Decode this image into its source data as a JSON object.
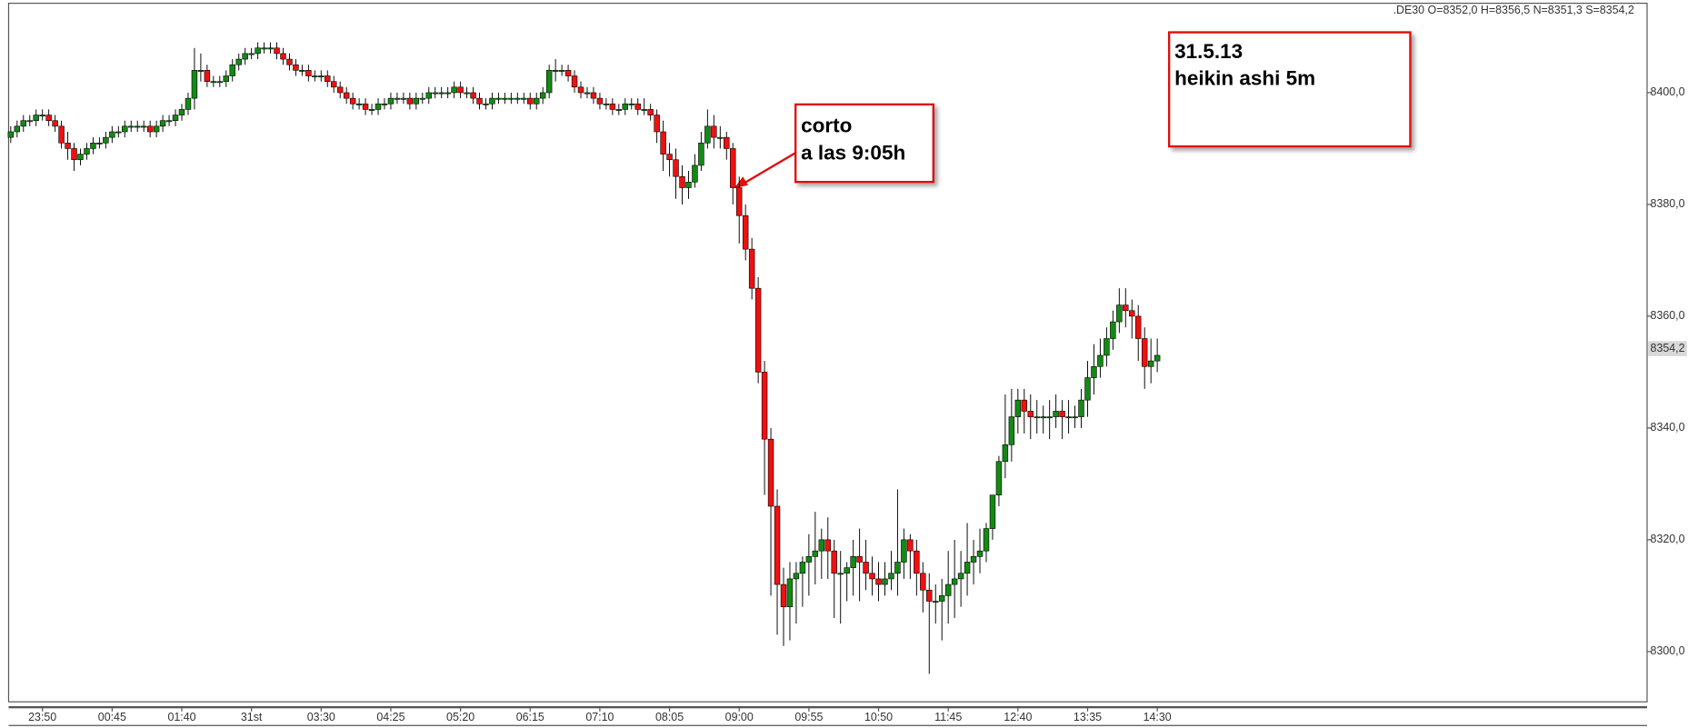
{
  "chart_data": {
    "type": "candlestick",
    "header": ".DE30 O=8352,0 H=8356,5 N=8351,3 S=8354,2",
    "annotations": [
      {
        "lines": [
          "corto",
          "a las 9:05h"
        ]
      },
      {
        "lines": [
          "31.5.13",
          "heikin ashi 5m"
        ]
      }
    ],
    "last_price": {
      "value": 8354.2,
      "label": "8354,2"
    },
    "up_color": "#138a13",
    "down_color": "#f01010",
    "ylim": [
      8291,
      8416
    ],
    "yticks": [
      {
        "value": 8300,
        "label": "8300,0"
      },
      {
        "value": 8320,
        "label": "8320,0"
      },
      {
        "value": 8340,
        "label": "8340,0"
      },
      {
        "value": 8360,
        "label": "8360,0"
      },
      {
        "value": 8380,
        "label": "8380,0"
      },
      {
        "value": 8400,
        "label": "8400,0"
      }
    ],
    "categories": [
      null,
      null,
      null,
      null,
      null,
      "23:50",
      null,
      null,
      null,
      null,
      null,
      null,
      null,
      null,
      null,
      null,
      "00:45",
      null,
      null,
      null,
      null,
      null,
      null,
      null,
      null,
      null,
      null,
      "01:40",
      null,
      null,
      null,
      null,
      null,
      null,
      null,
      null,
      null,
      null,
      "31st",
      null,
      null,
      null,
      null,
      null,
      null,
      null,
      null,
      null,
      null,
      "03:30",
      null,
      null,
      null,
      null,
      null,
      null,
      null,
      null,
      null,
      null,
      "04:25",
      null,
      null,
      null,
      null,
      null,
      null,
      null,
      null,
      null,
      null,
      "05:20",
      null,
      null,
      null,
      null,
      null,
      null,
      null,
      null,
      null,
      null,
      "06:15",
      null,
      null,
      null,
      null,
      null,
      null,
      null,
      null,
      null,
      null,
      "07:10",
      null,
      null,
      null,
      null,
      null,
      null,
      null,
      null,
      null,
      null,
      "08:05",
      null,
      null,
      null,
      null,
      null,
      null,
      null,
      null,
      null,
      null,
      "09:00",
      null,
      null,
      null,
      null,
      null,
      null,
      null,
      null,
      null,
      null,
      "09:55",
      null,
      null,
      null,
      null,
      null,
      null,
      null,
      null,
      null,
      null,
      "10:50",
      null,
      null,
      null,
      null,
      null,
      null,
      null,
      null,
      null,
      null,
      "11:45",
      null,
      null,
      null,
      null,
      null,
      null,
      null,
      null,
      null,
      null,
      "12:40",
      null,
      null,
      null,
      null,
      null,
      null,
      null,
      null,
      null,
      null,
      "13:35",
      null,
      null,
      null,
      null,
      null,
      null,
      null,
      null,
      null,
      null,
      "14:30"
    ],
    "open": [
      8392,
      8393,
      8394,
      8395,
      8395,
      8396,
      8396,
      8395,
      8394,
      8391,
      8390,
      8388,
      8389,
      8390,
      8391,
      8391,
      8392,
      8393,
      8393,
      8394,
      8394,
      8394,
      8394,
      8393,
      8394,
      8395,
      8395,
      8396,
      8397,
      8399,
      8404,
      8404,
      8402,
      8402,
      8402,
      8403,
      8405,
      8406,
      8407,
      8407,
      8408,
      8408,
      8408,
      8407,
      8406,
      8405,
      8404,
      8404,
      8403,
      8403,
      8403,
      8402,
      8401,
      8400,
      8399,
      8398,
      8398,
      8397,
      8397,
      8398,
      8398,
      8399,
      8399,
      8399,
      8398,
      8399,
      8399,
      8400,
      8400,
      8400,
      8400,
      8401,
      8400,
      8400,
      8399,
      8398,
      8398,
      8399,
      8399,
      8399,
      8399,
      8399,
      8399,
      8398,
      8399,
      8400,
      8404,
      8404,
      8404,
      8403,
      8401,
      8400,
      8400,
      8399,
      8398,
      8398,
      8397,
      8397,
      8398,
      8398,
      8397,
      8397,
      8396,
      8393,
      8389,
      8388,
      8385,
      8383,
      8384,
      8387,
      8391,
      8394,
      8392,
      8392,
      8390,
      8383,
      8378,
      8372,
      8365,
      8350,
      8338,
      8326,
      8312,
      8308,
      8313,
      8314,
      8316,
      8317,
      8318,
      8320,
      8318,
      8314,
      8314,
      8315,
      8317,
      8316,
      8314,
      8313,
      8312,
      8313,
      8314,
      8316,
      8320,
      8318,
      8314,
      8311,
      8309,
      8309,
      8310,
      8312,
      8313,
      8314,
      8316,
      8317,
      8318,
      8322,
      8328,
      8334,
      8337,
      8342,
      8345,
      8343,
      8342,
      8342,
      8342,
      8342,
      8343,
      8342,
      8342,
      8342,
      8345,
      8349,
      8351,
      8353,
      8356,
      8359,
      8362,
      8361,
      8360,
      8356,
      8351,
      8352
    ],
    "high": [
      8394,
      8395,
      8396,
      8396,
      8397,
      8397,
      8397,
      8396,
      8395,
      8393,
      8391,
      8390,
      8391,
      8392,
      8392,
      8393,
      8394,
      8394,
      8395,
      8395,
      8395,
      8395,
      8395,
      8395,
      8396,
      8396,
      8397,
      8398,
      8400,
      8408,
      8407,
      8405,
      8403,
      8403,
      8404,
      8406,
      8407,
      8408,
      8408,
      8409,
      8409,
      8409,
      8409,
      8408,
      8407,
      8406,
      8405,
      8405,
      8404,
      8404,
      8404,
      8403,
      8402,
      8401,
      8400,
      8399,
      8399,
      8398,
      8399,
      8399,
      8400,
      8400,
      8400,
      8400,
      8400,
      8400,
      8401,
      8401,
      8401,
      8401,
      8402,
      8402,
      8401,
      8401,
      8400,
      8399,
      8400,
      8400,
      8400,
      8400,
      8400,
      8400,
      8400,
      8400,
      8401,
      8405,
      8406,
      8405,
      8405,
      8404,
      8402,
      8401,
      8401,
      8400,
      8399,
      8399,
      8398,
      8399,
      8399,
      8399,
      8399,
      8398,
      8397,
      8395,
      8391,
      8390,
      8387,
      8386,
      8389,
      8393,
      8397,
      8396,
      8394,
      8393,
      8391,
      8385,
      8380,
      8374,
      8367,
      8352,
      8340,
      8329,
      8315,
      8316,
      8316,
      8317,
      8321,
      8325,
      8322,
      8324,
      8320,
      8318,
      8316,
      8320,
      8322,
      8320,
      8317,
      8316,
      8316,
      8318,
      8329,
      8322,
      8321,
      8320,
      8316,
      8314,
      8312,
      8313,
      8318,
      8320,
      8318,
      8323,
      8320,
      8322,
      8323,
      8328,
      8335,
      8346,
      8347,
      8347,
      8347,
      8346,
      8345,
      8344,
      8345,
      8346,
      8345,
      8345,
      8344,
      8347,
      8352,
      8355,
      8356,
      8358,
      8361,
      8365,
      8365,
      8363,
      8362,
      8358,
      8356,
      8356
    ],
    "low": [
      8391,
      8392,
      8393,
      8394,
      8394,
      8395,
      8394,
      8393,
      8390,
      8388,
      8386,
      8387,
      8388,
      8389,
      8390,
      8390,
      8391,
      8392,
      8392,
      8393,
      8393,
      8393,
      8392,
      8392,
      8393,
      8394,
      8394,
      8395,
      8396,
      8397,
      8402,
      8401,
      8401,
      8401,
      8401,
      8402,
      8404,
      8405,
      8406,
      8406,
      8407,
      8407,
      8406,
      8405,
      8404,
      8403,
      8403,
      8402,
      8402,
      8402,
      8401,
      8400,
      8399,
      8398,
      8397,
      8397,
      8396,
      8396,
      8396,
      8397,
      8397,
      8398,
      8398,
      8397,
      8397,
      8398,
      8398,
      8399,
      8399,
      8399,
      8399,
      8399,
      8399,
      8398,
      8397,
      8397,
      8397,
      8398,
      8398,
      8398,
      8398,
      8398,
      8397,
      8397,
      8398,
      8399,
      8402,
      8403,
      8402,
      8400,
      8399,
      8399,
      8398,
      8397,
      8397,
      8396,
      8396,
      8396,
      8397,
      8396,
      8396,
      8395,
      8391,
      8386,
      8385,
      8381,
      8380,
      8381,
      8383,
      8386,
      8390,
      8390,
      8390,
      8388,
      8380,
      8373,
      8370,
      8363,
      8348,
      8328,
      8310,
      8303,
      8301,
      8302,
      8305,
      8308,
      8310,
      8312,
      8313,
      8313,
      8306,
      8305,
      8309,
      8310,
      8309,
      8311,
      8310,
      8309,
      8310,
      8311,
      8310,
      8313,
      8313,
      8310,
      8307,
      8296,
      8305,
      8302,
      8305,
      8306,
      8308,
      8310,
      8312,
      8314,
      8316,
      8320,
      8326,
      8331,
      8334,
      8339,
      8339,
      8338,
      8339,
      8339,
      8338,
      8340,
      8338,
      8339,
      8340,
      8340,
      8342,
      8346,
      8349,
      8351,
      8354,
      8357,
      8358,
      8356,
      8352,
      8347,
      8348,
      8350
    ],
    "close": [
      8393,
      8394,
      8395,
      8395,
      8396,
      8396,
      8395,
      8394,
      8391,
      8390,
      8388,
      8389,
      8390,
      8391,
      8391,
      8392,
      8393,
      8393,
      8394,
      8394,
      8394,
      8394,
      8393,
      8394,
      8395,
      8395,
      8396,
      8397,
      8399,
      8404,
      8404,
      8402,
      8402,
      8402,
      8403,
      8405,
      8406,
      8407,
      8407,
      8408,
      8408,
      8408,
      8407,
      8406,
      8405,
      8404,
      8404,
      8403,
      8403,
      8403,
      8402,
      8401,
      8400,
      8399,
      8398,
      8398,
      8397,
      8397,
      8398,
      8398,
      8399,
      8399,
      8399,
      8398,
      8399,
      8399,
      8400,
      8400,
      8400,
      8400,
      8401,
      8400,
      8400,
      8399,
      8398,
      8398,
      8399,
      8399,
      8399,
      8399,
      8399,
      8399,
      8398,
      8399,
      8400,
      8404,
      8404,
      8404,
      8403,
      8401,
      8400,
      8400,
      8399,
      8398,
      8398,
      8397,
      8397,
      8398,
      8398,
      8397,
      8397,
      8396,
      8393,
      8389,
      8388,
      8385,
      8383,
      8384,
      8387,
      8391,
      8394,
      8392,
      8392,
      8390,
      8383,
      8378,
      8372,
      8365,
      8350,
      8338,
      8326,
      8312,
      8308,
      8313,
      8314,
      8316,
      8317,
      8318,
      8320,
      8318,
      8314,
      8314,
      8315,
      8317,
      8316,
      8314,
      8313,
      8312,
      8313,
      8314,
      8316,
      8320,
      8318,
      8314,
      8311,
      8309,
      8309,
      8310,
      8312,
      8313,
      8314,
      8316,
      8317,
      8318,
      8322,
      8328,
      8334,
      8337,
      8342,
      8345,
      8343,
      8342,
      8342,
      8342,
      8342,
      8343,
      8342,
      8342,
      8342,
      8345,
      8349,
      8351,
      8353,
      8356,
      8359,
      8362,
      8361,
      8360,
      8356,
      8351,
      8352,
      8353
    ]
  }
}
